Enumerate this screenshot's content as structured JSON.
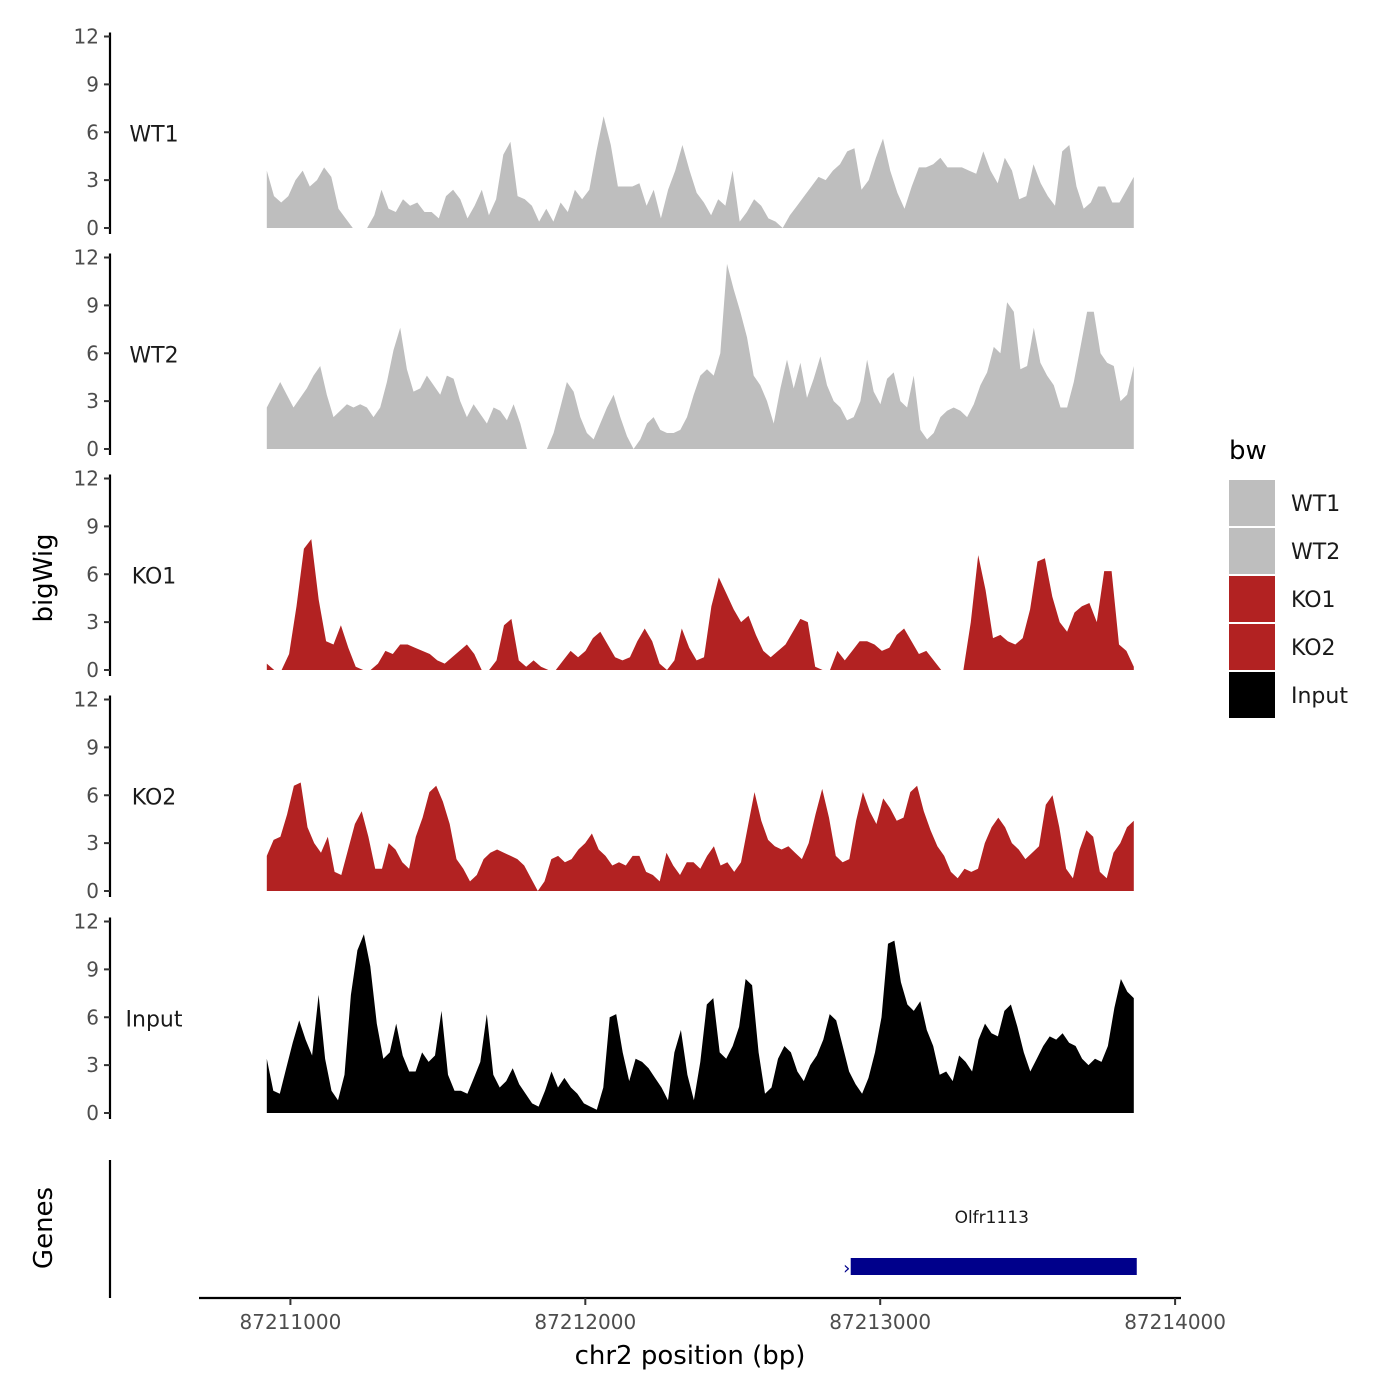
{
  "chart_data": {
    "type": "area",
    "title": "",
    "xlabel": "chr2 position (bp)",
    "ylabel": "bigWig",
    "ylim": [
      0,
      12
    ],
    "yticks": [
      0,
      3,
      6,
      9,
      12
    ],
    "xlim": [
      87210690,
      87214020
    ],
    "xticks": [
      87211000,
      87212000,
      87213000,
      87214000
    ],
    "xtick_labels": [
      "87211000",
      "87212000",
      "87213000",
      "87214000"
    ],
    "x_start": 87210920,
    "x_end": 87213860,
    "legend": {
      "title": "bw",
      "position": "right",
      "entries": [
        {
          "label": "WT1",
          "color": "#bebebe"
        },
        {
          "label": "WT2",
          "color": "#bebebe"
        },
        {
          "label": "KO1",
          "color": "#b22222"
        },
        {
          "label": "KO2",
          "color": "#b22222"
        },
        {
          "label": "Input",
          "color": "#000000"
        }
      ]
    },
    "series": [
      {
        "name": "WT1",
        "color": "#bebebe",
        "values": [
          3.6,
          2.0,
          1.6,
          2.0,
          3.0,
          3.6,
          2.6,
          3.0,
          3.8,
          3.2,
          1.2,
          0.6,
          0,
          0,
          0,
          0.8,
          2.4,
          1.2,
          1.0,
          1.8,
          1.4,
          1.6,
          1.0,
          1.0,
          0.6,
          2.0,
          2.4,
          1.8,
          0.6,
          1.4,
          2.4,
          0.8,
          1.8,
          4.6,
          5.4,
          2.0,
          1.8,
          1.4,
          0.4,
          1.2,
          0.4,
          1.6,
          1.0,
          2.4,
          1.8,
          2.4,
          4.8,
          7.0,
          5.2,
          2.6,
          2.6,
          2.6,
          2.8,
          1.4,
          2.4,
          0.6,
          2.4,
          3.6,
          5.2,
          3.6,
          2.2,
          1.6,
          0.8,
          1.8,
          1.4,
          3.6,
          0.4,
          1.0,
          1.8,
          1.4,
          0.6,
          0.4,
          0,
          0.8,
          1.4,
          2.0,
          2.6,
          3.2,
          3.0,
          3.6,
          4.0,
          4.8,
          5.0,
          2.4,
          3.0,
          4.4,
          5.6,
          3.6,
          2.2,
          1.2,
          2.6,
          3.8,
          3.8,
          4.0,
          4.4,
          3.8,
          3.8,
          3.8,
          3.6,
          3.4,
          4.8,
          3.6,
          2.8,
          4.4,
          3.6,
          1.8,
          2.0,
          4.0,
          2.8,
          2.0,
          1.4,
          4.8,
          5.2,
          2.6,
          1.2,
          1.6,
          2.6,
          2.6,
          1.6,
          1.6,
          2.4,
          3.2
        ]
      },
      {
        "name": "WT2",
        "color": "#bebebe",
        "values": [
          2.6,
          3.4,
          4.2,
          3.4,
          2.6,
          3.2,
          3.8,
          4.6,
          5.2,
          3.4,
          2.0,
          2.4,
          2.8,
          2.6,
          2.8,
          2.6,
          2.0,
          2.6,
          4.2,
          6.2,
          7.6,
          5.0,
          3.6,
          3.8,
          4.6,
          4.0,
          3.4,
          4.6,
          4.4,
          3.0,
          2.0,
          2.8,
          2.2,
          1.6,
          2.6,
          2.4,
          1.8,
          2.8,
          1.6,
          0,
          0,
          0,
          0,
          1.0,
          2.6,
          4.2,
          3.6,
          2.0,
          1.0,
          0.6,
          1.6,
          2.6,
          3.4,
          2.0,
          0.8,
          0,
          0.6,
          1.6,
          2.0,
          1.2,
          1.0,
          1.0,
          1.2,
          2.0,
          3.4,
          4.6,
          5.0,
          4.6,
          6.0,
          11.6,
          10.0,
          8.6,
          7.0,
          4.6,
          4.0,
          3.0,
          1.6,
          3.8,
          5.6,
          3.8,
          5.4,
          3.2,
          4.4,
          5.8,
          4.0,
          3.0,
          2.6,
          1.8,
          2.0,
          3.0,
          5.6,
          3.6,
          2.8,
          4.4,
          4.8,
          3.0,
          2.6,
          4.6,
          1.2,
          0.6,
          1.0,
          2.0,
          2.4,
          2.6,
          2.4,
          2.0,
          2.8,
          4.0,
          4.8,
          6.4,
          6.0,
          9.2,
          8.6,
          5.0,
          5.2,
          7.6,
          5.4,
          4.6,
          4.0,
          2.6,
          2.6,
          4.2,
          6.4,
          8.6,
          8.6,
          6.0,
          5.4,
          5.2,
          3.0,
          3.4,
          5.2
        ]
      },
      {
        "name": "KO1",
        "color": "#b22222",
        "values": [
          0.4,
          0,
          0,
          1.0,
          4.0,
          7.6,
          8.2,
          4.4,
          1.8,
          1.6,
          2.8,
          1.4,
          0.2,
          0,
          0,
          0.4,
          1.2,
          1.0,
          1.6,
          1.6,
          1.4,
          1.2,
          1.0,
          0.6,
          0.4,
          0.8,
          1.2,
          1.6,
          1.0,
          0,
          0,
          0.6,
          2.8,
          3.2,
          0.6,
          0.2,
          0.6,
          0.2,
          0,
          0,
          0.6,
          1.2,
          0.8,
          1.2,
          2.0,
          2.4,
          1.6,
          0.8,
          0.6,
          0.8,
          1.8,
          2.6,
          1.8,
          0.4,
          0,
          0.6,
          2.6,
          1.4,
          0.6,
          0.8,
          4.0,
          5.8,
          4.8,
          3.8,
          3.0,
          3.4,
          2.2,
          1.2,
          0.8,
          1.2,
          1.6,
          2.4,
          3.2,
          3.0,
          0.2,
          0,
          0,
          1.2,
          0.6,
          1.2,
          1.8,
          1.8,
          1.6,
          1.2,
          1.4,
          2.2,
          2.6,
          1.8,
          1.0,
          1.2,
          0.6,
          0,
          0,
          0,
          0,
          3.0,
          7.2,
          5.0,
          2.0,
          2.2,
          1.8,
          1.6,
          2.0,
          3.8,
          6.8,
          7.0,
          4.6,
          3.0,
          2.4,
          3.6,
          4.0,
          4.2,
          3.0,
          6.2,
          6.2,
          1.6,
          1.2,
          0.2
        ]
      },
      {
        "name": "KO2",
        "color": "#b22222",
        "values": [
          2.2,
          3.2,
          3.4,
          4.8,
          6.6,
          6.8,
          4.0,
          3.0,
          2.4,
          3.4,
          1.2,
          1.0,
          2.6,
          4.2,
          5.0,
          3.4,
          1.4,
          1.4,
          3.0,
          2.6,
          1.8,
          1.4,
          3.4,
          4.6,
          6.2,
          6.6,
          5.6,
          4.2,
          2.0,
          1.4,
          0.6,
          1.0,
          2.0,
          2.4,
          2.6,
          2.4,
          2.2,
          2.0,
          1.6,
          0.8,
          0,
          0.6,
          2.0,
          2.2,
          1.8,
          2.0,
          2.6,
          3.0,
          3.6,
          2.6,
          2.2,
          1.6,
          1.8,
          1.6,
          2.2,
          2.2,
          1.2,
          1.0,
          0.6,
          2.4,
          1.6,
          1.0,
          1.8,
          1.8,
          1.4,
          2.2,
          2.8,
          1.6,
          1.8,
          1.2,
          1.8,
          4.0,
          6.2,
          4.4,
          3.2,
          2.8,
          2.6,
          2.8,
          2.4,
          2.0,
          3.0,
          4.8,
          6.4,
          4.6,
          2.2,
          1.8,
          2.0,
          4.4,
          6.2,
          5.0,
          4.2,
          5.8,
          5.2,
          4.4,
          4.6,
          6.2,
          6.6,
          5.0,
          3.8,
          2.8,
          2.2,
          1.2,
          0.8,
          1.4,
          1.2,
          1.4,
          3.0,
          4.0,
          4.6,
          4.0,
          3.0,
          2.6,
          2.0,
          2.4,
          2.8,
          5.4,
          6.0,
          4.0,
          1.4,
          0.8,
          2.6,
          3.8,
          3.4,
          1.2,
          0.8,
          2.4,
          3.0,
          4.0,
          4.4
        ]
      },
      {
        "name": "Input",
        "color": "#000000",
        "values": [
          3.4,
          1.4,
          1.2,
          2.8,
          4.4,
          5.8,
          4.6,
          3.6,
          7.4,
          3.4,
          1.4,
          0.8,
          2.4,
          7.4,
          10.2,
          11.2,
          9.2,
          5.6,
          3.4,
          3.8,
          5.6,
          3.6,
          2.6,
          2.6,
          3.8,
          3.2,
          3.6,
          6.4,
          2.4,
          1.4,
          1.4,
          1.2,
          2.2,
          3.2,
          6.2,
          2.4,
          1.6,
          2.0,
          2.8,
          1.8,
          1.2,
          0.6,
          0.4,
          1.4,
          2.6,
          1.6,
          2.2,
          1.6,
          1.2,
          0.6,
          0.4,
          0.2,
          1.6,
          6.0,
          6.2,
          3.8,
          2.0,
          3.4,
          3.2,
          2.8,
          2.2,
          1.6,
          0.8,
          3.8,
          5.2,
          2.4,
          0.8,
          3.2,
          6.8,
          7.2,
          3.8,
          3.4,
          4.2,
          5.4,
          8.4,
          8.0,
          3.8,
          1.2,
          1.6,
          3.4,
          4.2,
          3.8,
          2.6,
          2.0,
          3.0,
          3.6,
          4.6,
          6.2,
          5.8,
          4.2,
          2.6,
          1.8,
          1.2,
          2.2,
          3.8,
          6.0,
          10.6,
          10.8,
          8.2,
          6.8,
          6.4,
          7.0,
          5.2,
          4.2,
          2.4,
          2.6,
          2.0,
          3.6,
          3.2,
          2.6,
          4.6,
          5.6,
          5.0,
          4.8,
          6.4,
          6.8,
          5.4,
          3.8,
          2.6,
          3.4,
          4.2,
          4.8,
          4.6,
          5.0,
          4.4,
          4.2,
          3.4,
          3.0,
          3.4,
          3.2,
          4.2,
          6.6,
          8.4,
          7.6,
          7.2
        ]
      }
    ],
    "genes": {
      "title": "Genes",
      "items": [
        {
          "name": "Olfr1113",
          "start": 87212900,
          "end": 87213870,
          "color": "#00008b"
        }
      ]
    }
  }
}
